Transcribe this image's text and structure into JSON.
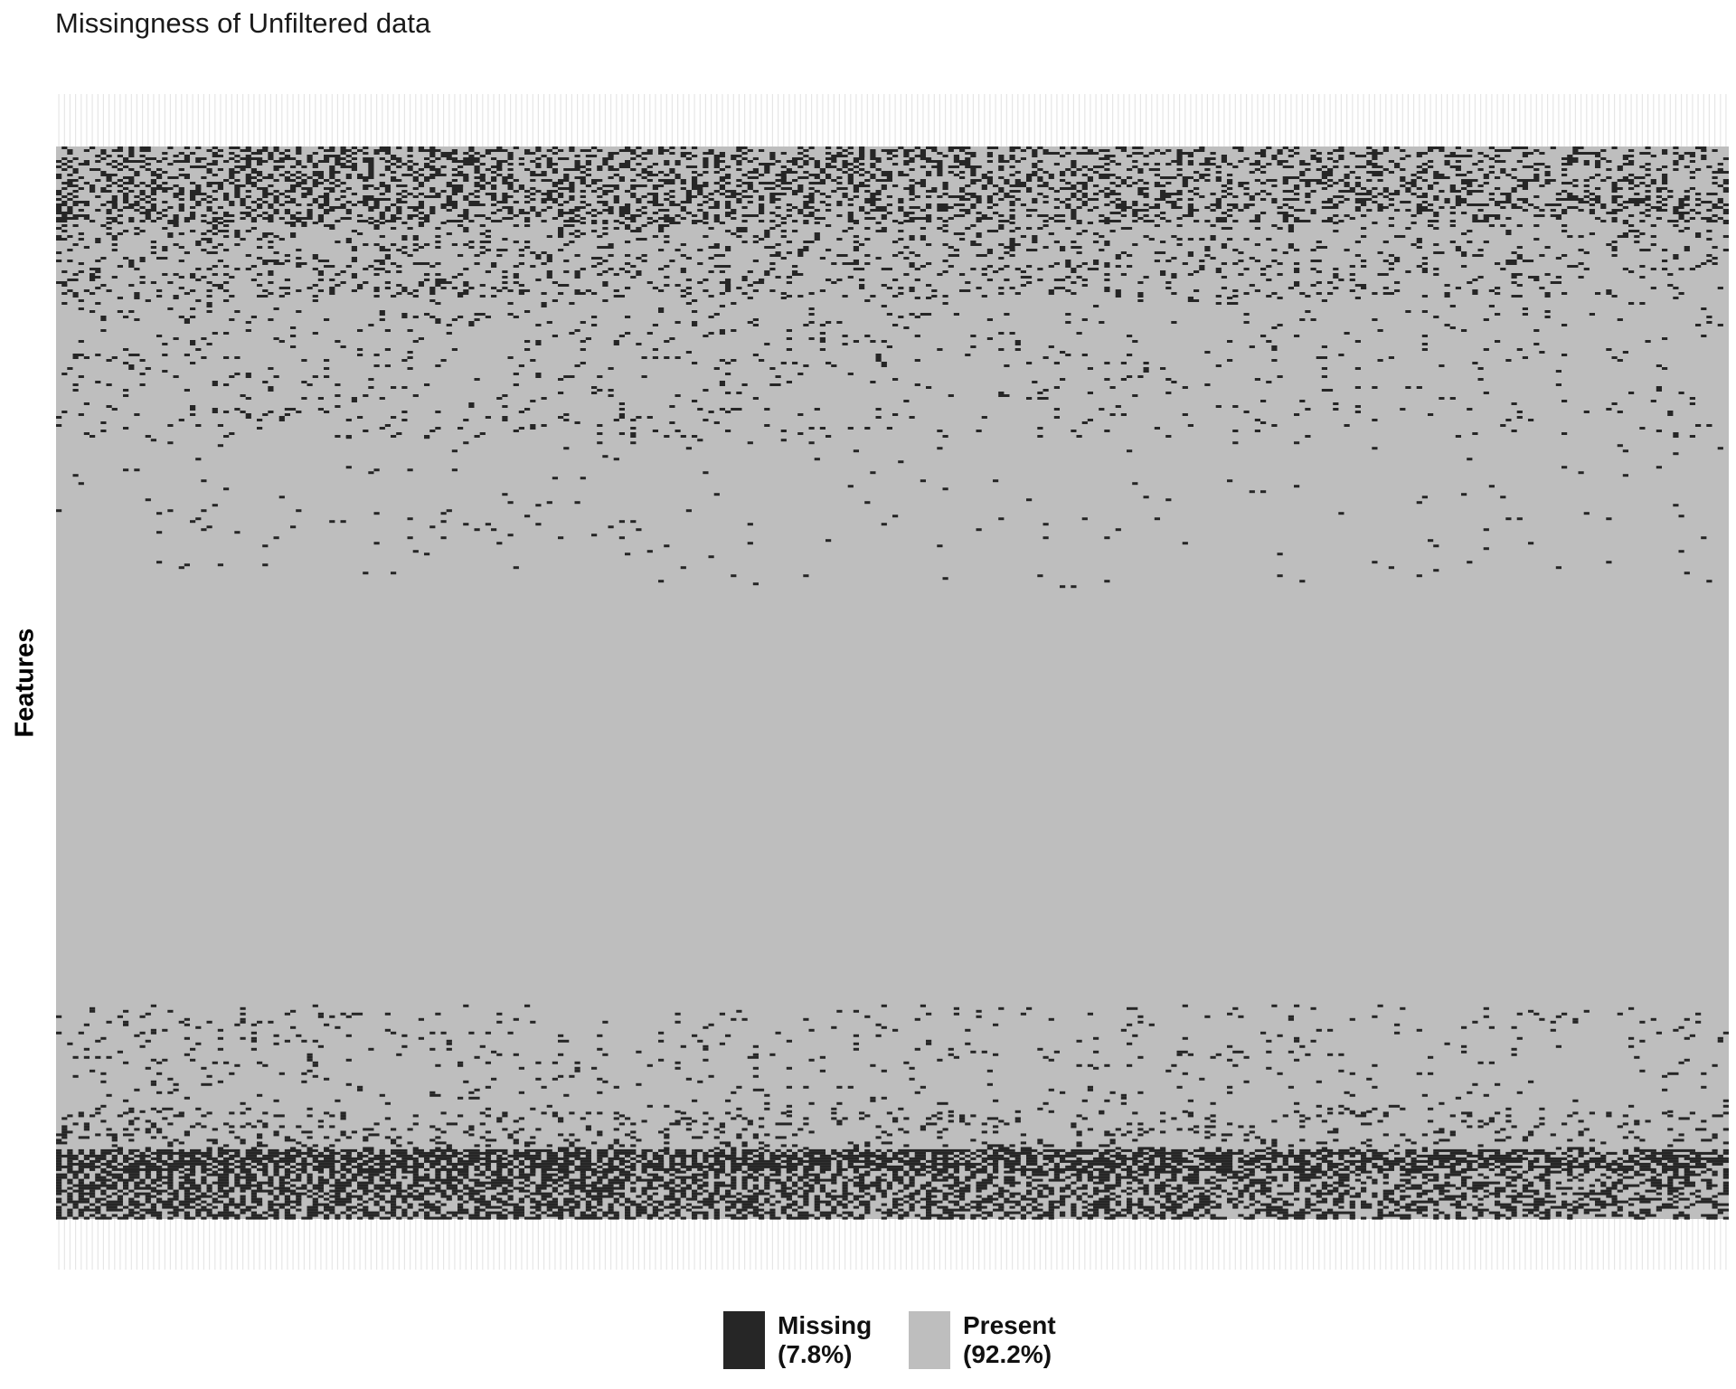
{
  "chart_data": {
    "type": "heatmap",
    "title": "Missingness of Unfiltered data",
    "xlabel": "",
    "ylabel": "Features",
    "categories": [
      "Missing",
      "Present"
    ],
    "colors": {
      "missing": "#262626",
      "present": "#bebebe",
      "background": "#ffffff",
      "tick_stripe": "#e6e6e6"
    },
    "legend": {
      "position": "bottom",
      "items": [
        {
          "label": "Missing",
          "percent": "(7.8%)",
          "color": "#262626",
          "value": 7.8
        },
        {
          "label": "Present",
          "percent": "(92.2%)",
          "color": "#bebebe",
          "value": 92.2
        }
      ]
    },
    "approx_sample_columns": 300,
    "missingness_profile": [
      {
        "feature_fraction": [
          0.0,
          0.07
        ],
        "missing_rate": 0.38
      },
      {
        "feature_fraction": [
          0.07,
          0.14
        ],
        "missing_rate": 0.14
      },
      {
        "feature_fraction": [
          0.14,
          0.27
        ],
        "missing_rate": 0.04
      },
      {
        "feature_fraction": [
          0.27,
          0.41
        ],
        "missing_rate": 0.012
      },
      {
        "feature_fraction": [
          0.41,
          0.8
        ],
        "missing_rate": 0.0
      },
      {
        "feature_fraction": [
          0.8,
          0.9
        ],
        "missing_rate": 0.04
      },
      {
        "feature_fraction": [
          0.9,
          0.935
        ],
        "missing_rate": 0.14
      },
      {
        "feature_fraction": [
          0.935,
          0.955
        ],
        "missing_rate": 0.93
      },
      {
        "feature_fraction": [
          0.955,
          1.0
        ],
        "missing_rate": 0.62
      }
    ]
  }
}
